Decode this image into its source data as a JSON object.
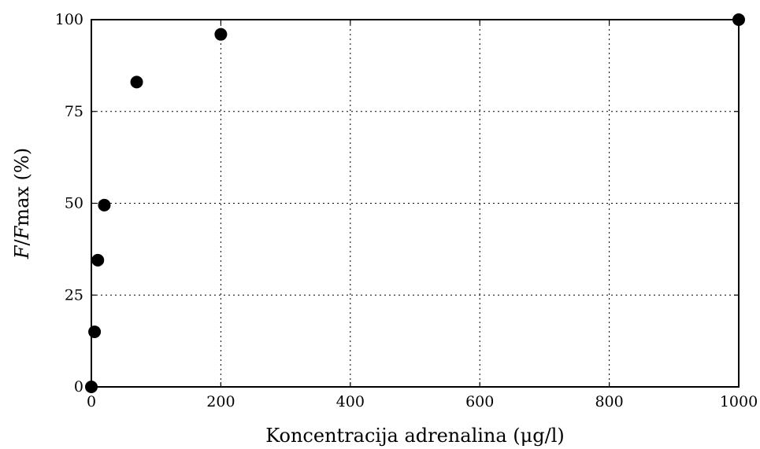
{
  "chart_data": {
    "type": "scatter",
    "title": "",
    "xlabel": "Koncentracija adrenalina (μg/l)",
    "ylabel_parts": {
      "a": "F",
      "b": "/",
      "c": "F",
      "d": "max",
      "e": " (%)"
    },
    "xlim": [
      0,
      1000
    ],
    "ylim": [
      0,
      100
    ],
    "xticks": [
      0,
      200,
      400,
      600,
      800,
      1000
    ],
    "yticks": [
      0,
      25,
      50,
      75,
      100
    ],
    "xtick_labels": [
      "0",
      "200",
      "400",
      "600",
      "800",
      "1000"
    ],
    "ytick_labels": [
      "0",
      "25",
      "50",
      "75",
      "100"
    ],
    "grid": true,
    "marker_color": "#000000",
    "series": [
      {
        "x": [
          0,
          5,
          10,
          20,
          70,
          200,
          1000
        ],
        "y": [
          0,
          15,
          34.5,
          49.5,
          83,
          96,
          100
        ]
      }
    ]
  }
}
